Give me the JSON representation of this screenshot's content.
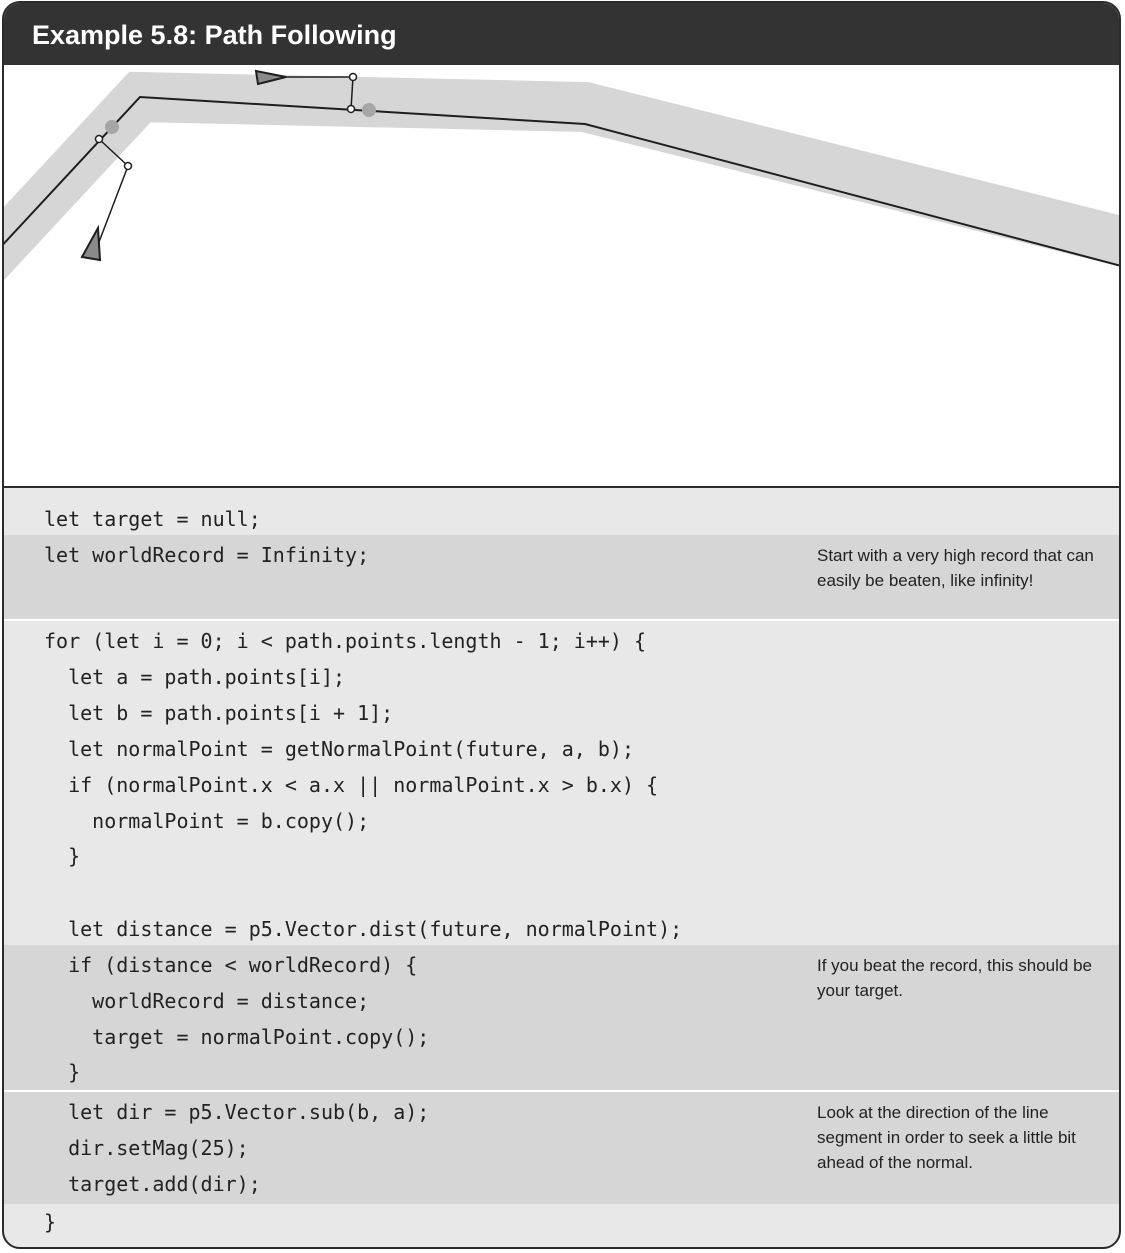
{
  "header": {
    "title": "Example 5.8: Path Following"
  },
  "code": {
    "lines": [
      "let target = null;",
      "let worldRecord = Infinity;",
      "for (let i = 0; i < path.points.length - 1; i++) {",
      "  let a = path.points[i];",
      "  let b = path.points[i + 1];",
      "  let normalPoint = getNormalPoint(future, a, b);",
      "  if (normalPoint.x < a.x || normalPoint.x > b.x) {",
      "    normalPoint = b.copy();",
      "  }",
      "  let distance = p5.Vector.dist(future, normalPoint);",
      "  if (distance < worldRecord) {",
      "    worldRecord = distance;",
      "    target = normalPoint.copy();",
      "  }",
      "  let dir = p5.Vector.sub(b, a);",
      "  dir.setMag(25);",
      "  target.add(dir);",
      "}"
    ]
  },
  "notes": {
    "record": "Start with a very high record that can easily be beaten, like infinity!",
    "beat": "If you beat the record, this should be your target.",
    "direction": "Look at the direction of the line segment in order to seek a little bit ahead of the normal."
  },
  "colors": {
    "header_bg": "#333333",
    "path_band": "#d6d6d6",
    "code_bg": "#e8e8e8",
    "annotated_band": "#d6d6d6"
  }
}
